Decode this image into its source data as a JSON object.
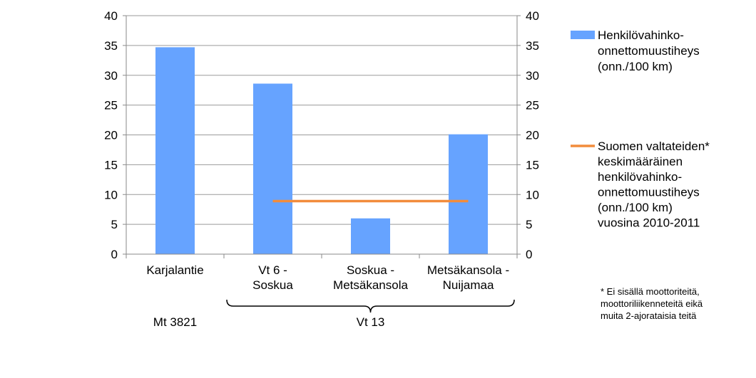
{
  "chart_data": {
    "type": "bar",
    "categories": [
      [
        "Karjalantie"
      ],
      [
        "Vt 6 -",
        "Soskua"
      ],
      [
        "Soskua -",
        "Metsäkansola"
      ],
      [
        "Metsäkansola -",
        "Nuijamaa"
      ]
    ],
    "series": [
      {
        "name": [
          "Henkilövahinko-",
          "onnettomuustiheys",
          "(onn./100 km)"
        ],
        "type": "bar",
        "values": [
          34.7,
          28.6,
          6.0,
          20.1
        ],
        "color": "#66a3ff"
      },
      {
        "name": [
          "Suomen valtateiden*",
          "keskimääräinen",
          "henkilövahinko-",
          "onnettomuustiheys",
          "(onn./100 km)",
          "vuosina 2010-2011"
        ],
        "type": "line",
        "values": [
          null,
          8.9,
          8.9,
          8.9
        ],
        "color": "#f28c3c"
      }
    ],
    "ylim": [
      0,
      40
    ],
    "yticks": [
      0,
      5,
      10,
      15,
      20,
      25,
      30,
      35,
      40
    ],
    "y2ticks": [
      0,
      5,
      10,
      15,
      20,
      25,
      30,
      35,
      40
    ],
    "grid": true,
    "legend_position": "right",
    "groups": [
      {
        "label": "Mt 3821",
        "categories": [
          0
        ],
        "bracket": false
      },
      {
        "label": "Vt 13",
        "categories": [
          1,
          2,
          3
        ],
        "bracket": true
      }
    ],
    "footnote": [
      "* Ei sisällä moottoriteitä,",
      "moottoriliikenneteitä eikä",
      "muita 2-ajorataisia teitä"
    ]
  }
}
